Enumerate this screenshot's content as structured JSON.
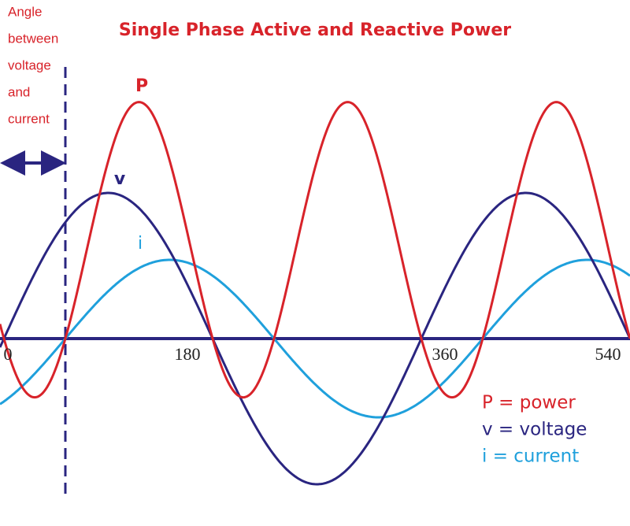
{
  "title": "Single Phase Active and Reactive Power",
  "annotation": [
    "Angle",
    "between",
    "voltage",
    "and",
    "current"
  ],
  "curve_labels": {
    "power": "P",
    "voltage": "v",
    "current": "i"
  },
  "axis_ticks": [
    "0",
    "180",
    "360",
    "540"
  ],
  "legend": [
    "P = power",
    "v = voltage",
    "i = current"
  ]
}
